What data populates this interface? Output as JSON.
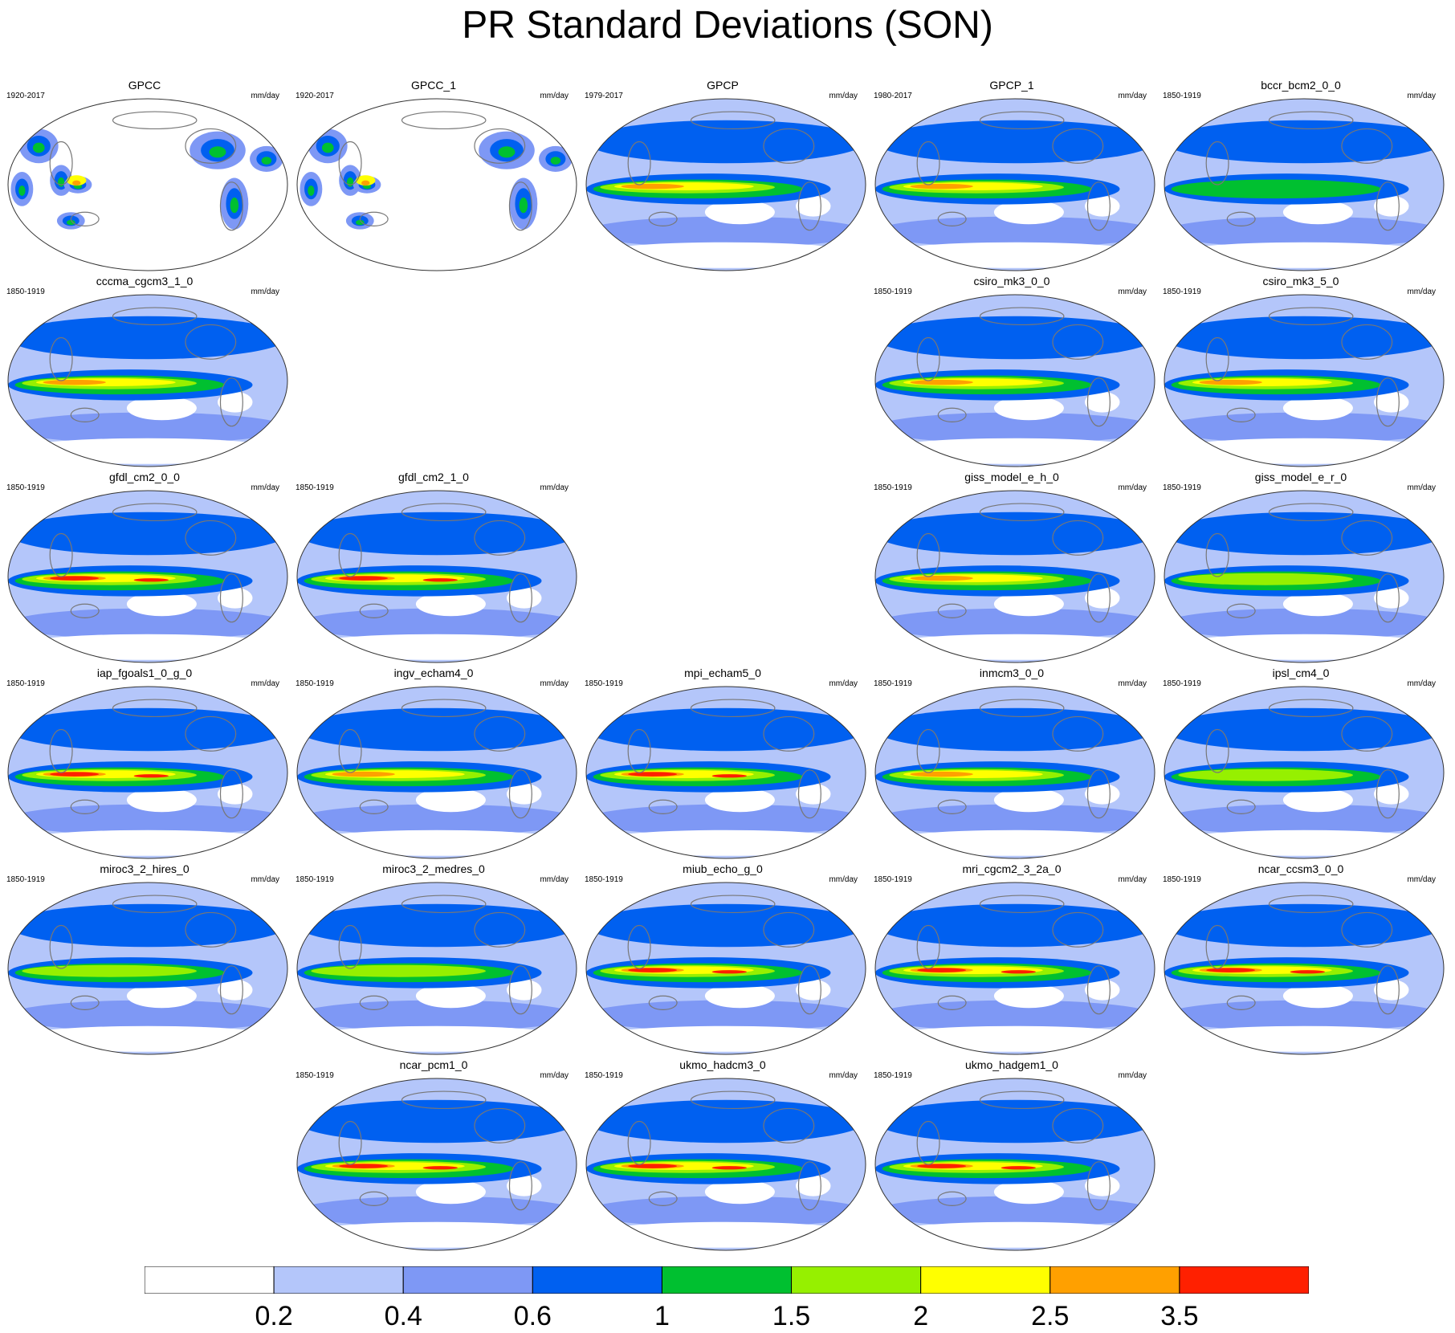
{
  "title": "PR Standard Deviations (SON)",
  "units": "mm/day",
  "chart_data": {
    "type": "heatmap",
    "description_type": "filled-contour global maps, one per dataset",
    "levels": [
      0.2,
      0.4,
      0.6,
      1,
      1.5,
      2,
      2.5,
      3.5
    ],
    "level_labels": [
      "0.2",
      "0.4",
      "0.6",
      "1",
      "1.5",
      "2",
      "2.5",
      "3.5"
    ],
    "colors": [
      "#ffffff",
      "#b4c6fa",
      "#7e98f5",
      "#0060f0",
      "#00c030",
      "#96f000",
      "#ffff00",
      "#ffa000",
      "#ff2000"
    ],
    "panels": [
      {
        "name": "GPCC",
        "period": "1920-2017",
        "row": 0,
        "col": 0,
        "land_only": true,
        "peak": 2
      },
      {
        "name": "GPCC_1",
        "period": "1920-2017",
        "row": 0,
        "col": 1,
        "land_only": true,
        "peak": 2
      },
      {
        "name": "GPCP",
        "period": "1979-2017",
        "row": 0,
        "col": 2,
        "land_only": false,
        "peak": 3
      },
      {
        "name": "GPCP_1",
        "period": "1980-2017",
        "row": 0,
        "col": 3,
        "land_only": false,
        "peak": 3
      },
      {
        "name": "bccr_bcm2_0_0",
        "period": "1850-1919",
        "row": 0,
        "col": 4,
        "land_only": false,
        "peak": 1
      },
      {
        "name": "cccma_cgcm3_1_0",
        "period": "1850-1919",
        "row": 1,
        "col": 0,
        "land_only": false,
        "peak": 3
      },
      {
        "name": "csiro_mk3_0_0",
        "period": "1850-1919",
        "row": 1,
        "col": 3,
        "land_only": false,
        "peak": 3
      },
      {
        "name": "csiro_mk3_5_0",
        "period": "1850-1919",
        "row": 1,
        "col": 4,
        "land_only": false,
        "peak": 3
      },
      {
        "name": "gfdl_cm2_0_0",
        "period": "1850-1919",
        "row": 2,
        "col": 0,
        "land_only": false,
        "peak": 4
      },
      {
        "name": "gfdl_cm2_1_0",
        "period": "1850-1919",
        "row": 2,
        "col": 1,
        "land_only": false,
        "peak": 4
      },
      {
        "name": "giss_model_e_h_0",
        "period": "1850-1919",
        "row": 2,
        "col": 3,
        "land_only": false,
        "peak": 3
      },
      {
        "name": "giss_model_e_r_0",
        "period": "1850-1919",
        "row": 2,
        "col": 4,
        "land_only": false,
        "peak": 2
      },
      {
        "name": "iap_fgoals1_0_g_0",
        "period": "1850-1919",
        "row": 3,
        "col": 0,
        "land_only": false,
        "peak": 4
      },
      {
        "name": "ingv_echam4_0",
        "period": "1850-1919",
        "row": 3,
        "col": 1,
        "land_only": false,
        "peak": 3
      },
      {
        "name": "mpi_echam5_0",
        "period": "1850-1919",
        "row": 3,
        "col": 2,
        "land_only": false,
        "peak": 4
      },
      {
        "name": "inmcm3_0_0",
        "period": "1850-1919",
        "row": 3,
        "col": 3,
        "land_only": false,
        "peak": 3
      },
      {
        "name": "ipsl_cm4_0",
        "period": "1850-1919",
        "row": 3,
        "col": 4,
        "land_only": false,
        "peak": 2
      },
      {
        "name": "miroc3_2_hires_0",
        "period": "1850-1919",
        "row": 4,
        "col": 0,
        "land_only": false,
        "peak": 2
      },
      {
        "name": "miroc3_2_medres_0",
        "period": "1850-1919",
        "row": 4,
        "col": 1,
        "land_only": false,
        "peak": 2
      },
      {
        "name": "miub_echo_g_0",
        "period": "1850-1919",
        "row": 4,
        "col": 2,
        "land_only": false,
        "peak": 4
      },
      {
        "name": "mri_cgcm2_3_2a_0",
        "period": "1850-1919",
        "row": 4,
        "col": 3,
        "land_only": false,
        "peak": 4
      },
      {
        "name": "ncar_ccsm3_0_0",
        "period": "1850-1919",
        "row": 4,
        "col": 4,
        "land_only": false,
        "peak": 4
      },
      {
        "name": "ncar_pcm1_0",
        "period": "1850-1919",
        "row": 5,
        "col": 1,
        "land_only": false,
        "peak": 4
      },
      {
        "name": "ukmo_hadcm3_0",
        "period": "1850-1919",
        "row": 5,
        "col": 2,
        "land_only": false,
        "peak": 4
      },
      {
        "name": "ukmo_hadgem1_0",
        "period": "1850-1919",
        "row": 5,
        "col": 3,
        "land_only": false,
        "peak": 4
      }
    ]
  }
}
